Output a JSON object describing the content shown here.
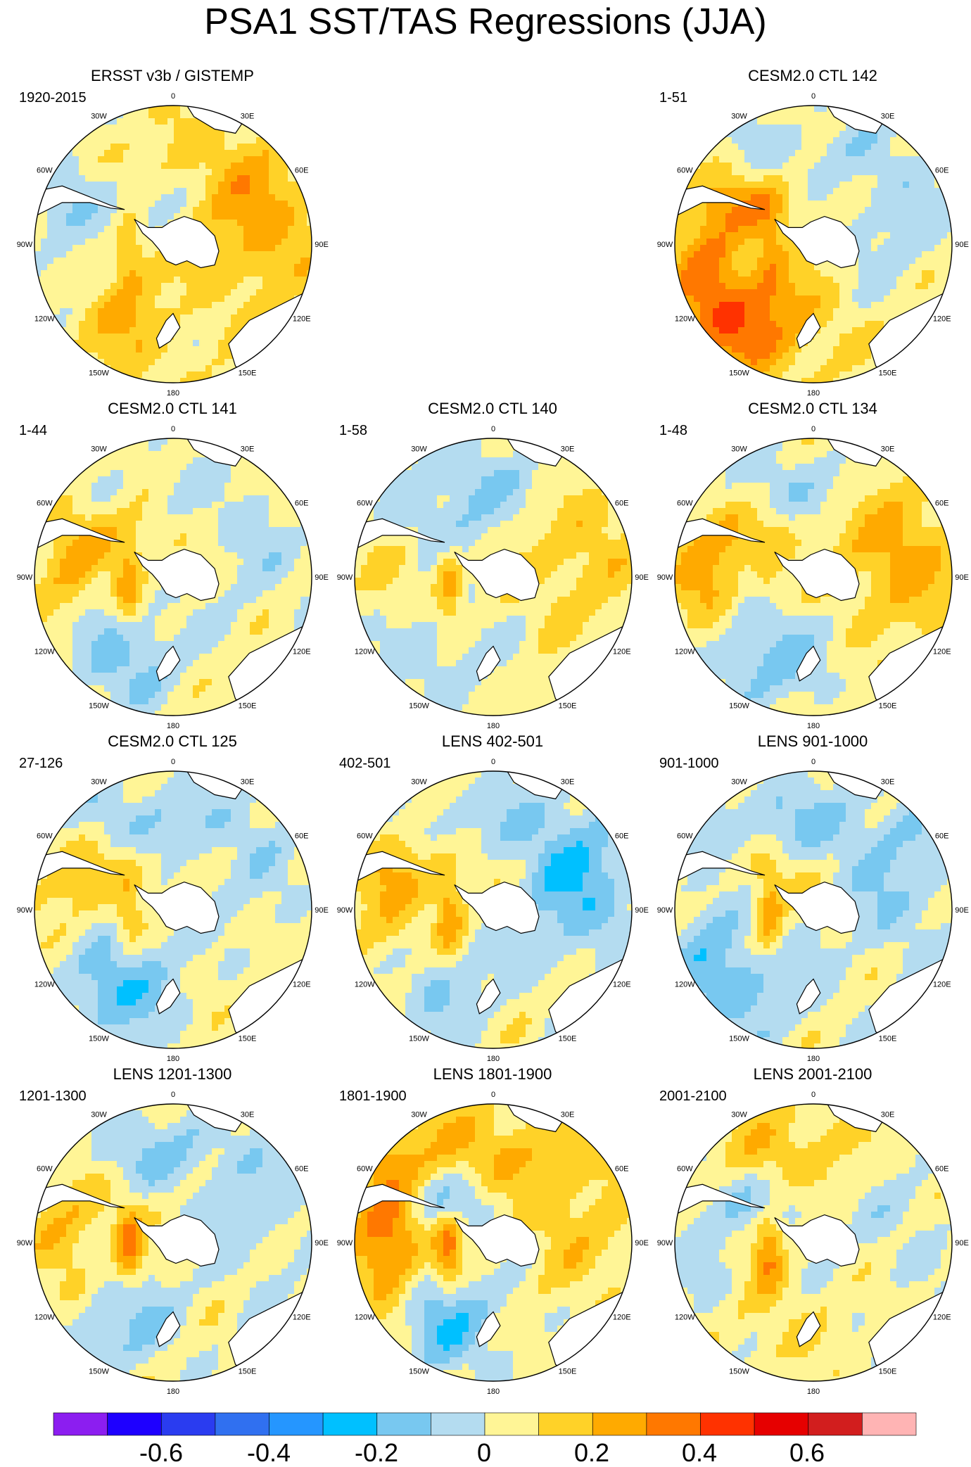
{
  "figure": {
    "title": "PSA1 SST/TAS Regressions (JJA)"
  },
  "map_grid": {
    "longitude_labels": [
      "0",
      "30E",
      "60E",
      "90E",
      "120E",
      "150E",
      "180",
      "150W",
      "120W",
      "90W",
      "60W",
      "30W"
    ]
  },
  "panels": [
    {
      "id": "obs",
      "title": "ERSST v3b / GISTEMP",
      "period": "1920-2015",
      "row": 0,
      "col": 0,
      "pattern": {
        "pac_south": 0.15,
        "pac_north": -0.12,
        "indian": 0.2,
        "atl": 0.05,
        "bell": 0.2,
        "wedd": -0.12,
        "seed": 1
      }
    },
    {
      "id": "ctl142",
      "title": "CESM2.0 CTL 142",
      "period": "1-51",
      "row": 0,
      "col": 2,
      "pattern": {
        "pac_south": 0.3,
        "pac_north": 0.2,
        "indian": -0.1,
        "atl": -0.1,
        "bell": 0.15,
        "wedd": 0.2,
        "seed": 2
      }
    },
    {
      "id": "ctl141",
      "title": "CESM2.0 CTL 141",
      "period": "1-44",
      "row": 1,
      "col": 0,
      "pattern": {
        "pac_south": -0.2,
        "pac_north": 0.15,
        "indian": -0.08,
        "atl": -0.05,
        "bell": 0.25,
        "wedd": 0.1,
        "seed": 3
      }
    },
    {
      "id": "ctl140",
      "title": "CESM2.0 CTL 140",
      "period": "1-58",
      "row": 1,
      "col": 1,
      "pattern": {
        "pac_south": -0.12,
        "pac_north": 0.05,
        "indian": 0.12,
        "atl": -0.15,
        "bell": 0.25,
        "wedd": -0.1,
        "seed": 4
      }
    },
    {
      "id": "ctl134",
      "title": "CESM2.0 CTL 134",
      "period": "1-48",
      "row": 1,
      "col": 2,
      "pattern": {
        "pac_south": -0.22,
        "pac_north": 0.2,
        "indian": 0.2,
        "atl": -0.12,
        "bell": 0.1,
        "wedd": 0.1,
        "seed": 5
      }
    },
    {
      "id": "ctl125",
      "title": "CESM2.0 CTL 125",
      "period": "27-126",
      "row": 2,
      "col": 0,
      "pattern": {
        "pac_south": -0.25,
        "pac_north": 0.1,
        "indian": -0.08,
        "atl": -0.15,
        "bell": 0.15,
        "wedd": 0.1,
        "seed": 6
      }
    },
    {
      "id": "lens402",
      "title": "LENS 402-501",
      "period": "402-501",
      "row": 2,
      "col": 1,
      "pattern": {
        "pac_south": -0.15,
        "pac_north": 0.15,
        "indian": -0.25,
        "atl": -0.1,
        "bell": 0.25,
        "wedd": 0.1,
        "seed": 7
      }
    },
    {
      "id": "lens901",
      "title": "LENS 901-1000",
      "period": "901-1000",
      "row": 2,
      "col": 2,
      "pattern": {
        "pac_south": -0.18,
        "pac_north": -0.12,
        "indian": -0.15,
        "atl": -0.15,
        "bell": 0.25,
        "wedd": 0.1,
        "seed": 8
      }
    },
    {
      "id": "lens1201",
      "title": "LENS 1201-1300",
      "period": "1201-1300",
      "row": 3,
      "col": 0,
      "pattern": {
        "pac_south": -0.18,
        "pac_north": 0.15,
        "indian": -0.1,
        "atl": -0.15,
        "bell": 0.3,
        "wedd": 0.05,
        "seed": 9
      }
    },
    {
      "id": "lens1801",
      "title": "LENS 1801-1900",
      "period": "1801-1900",
      "row": 3,
      "col": 1,
      "pattern": {
        "pac_south": -0.25,
        "pac_north": 0.35,
        "indian": 0.1,
        "atl": 0.15,
        "bell": 0.3,
        "wedd": -0.2,
        "seed": 10
      }
    },
    {
      "id": "lens2001",
      "title": "LENS 2001-2100",
      "period": "2001-2100",
      "row": 3,
      "col": 2,
      "pattern": {
        "pac_south": 0.05,
        "pac_north": -0.1,
        "indian": -0.08,
        "atl": 0.12,
        "bell": 0.25,
        "wedd": -0.12,
        "seed": 11
      }
    }
  ],
  "colorbar": {
    "levels": [
      -0.7,
      -0.6,
      -0.5,
      -0.4,
      -0.3,
      -0.2,
      -0.1,
      0,
      0.1,
      0.2,
      0.3,
      0.4,
      0.5,
      0.6,
      0.7
    ],
    "colors": [
      "#8c1ef0",
      "#1e00ff",
      "#2a3cf0",
      "#3070f0",
      "#2596ff",
      "#00c0ff",
      "#78c8f0",
      "#b4dcf0",
      "#fff596",
      "#ffd228",
      "#ffaa00",
      "#ff7800",
      "#ff3200",
      "#e60000",
      "#d21e1e",
      "#ffb4b4"
    ],
    "labels": [
      "-0.6",
      "-0.4",
      "-0.2",
      "0",
      "0.2",
      "0.4",
      "0.6"
    ]
  },
  "colors": {
    "land": "#ffffff",
    "coast": "#000000",
    "ice_shadow": "#a0a0a0",
    "outline": "#000000"
  }
}
